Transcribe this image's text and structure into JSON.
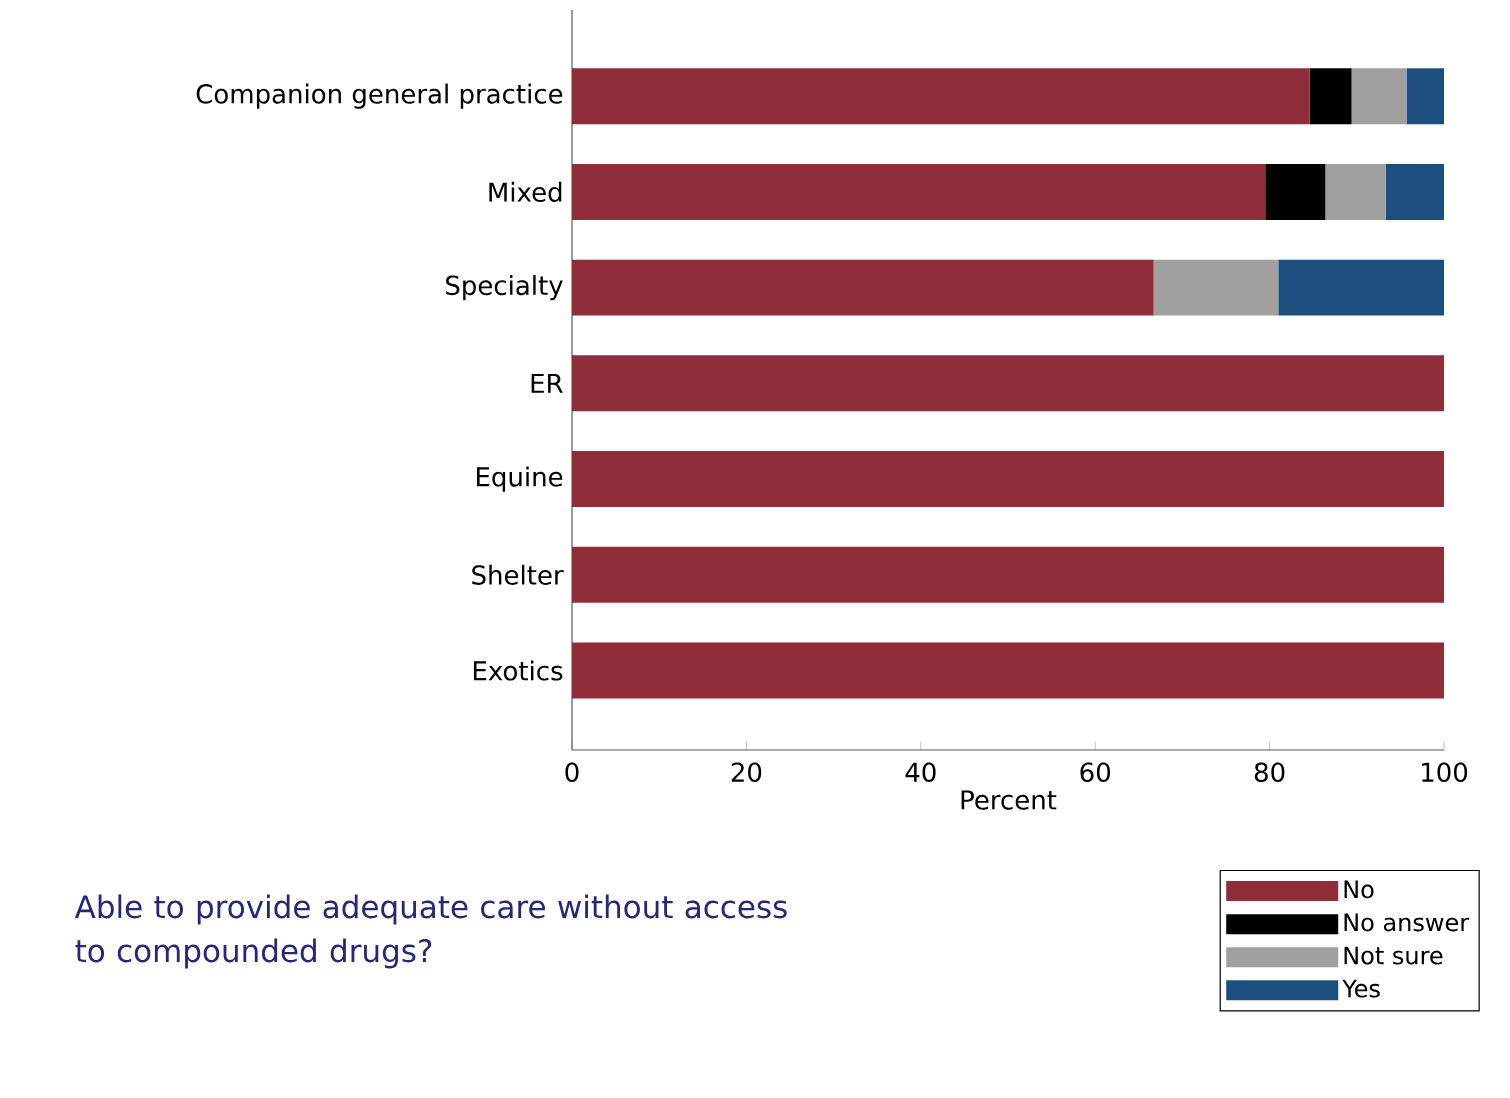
{
  "chart_data": {
    "type": "bar",
    "orientation": "horizontal",
    "stacked": true,
    "title": "Able to provide adequate care without access to compounded drugs?",
    "xlabel": "Percent",
    "categories": [
      "Companion general practice",
      "Mixed",
      "Specialty",
      "ER",
      "Equine",
      "Shelter",
      "Exotics"
    ],
    "series": [
      {
        "name": "No",
        "color": "#8f2d38",
        "values": [
          84.6,
          79.5,
          66.7,
          100,
          100,
          100,
          100
        ]
      },
      {
        "name": "No answer",
        "color": "#000000",
        "values": [
          4.8,
          6.9,
          0,
          0,
          0,
          0,
          0
        ]
      },
      {
        "name": "Not sure",
        "color": "#a0a0a0",
        "values": [
          6.3,
          6.9,
          14.3,
          0,
          0,
          0,
          0
        ]
      },
      {
        "name": "Yes",
        "color": "#1c4f80",
        "values": [
          4.3,
          6.7,
          19.0,
          0,
          0,
          0,
          0
        ]
      }
    ],
    "xlim": [
      0,
      100
    ],
    "xticks": [
      0,
      20,
      40,
      60,
      80,
      100
    ],
    "grid": false,
    "legend": "bottom right"
  }
}
